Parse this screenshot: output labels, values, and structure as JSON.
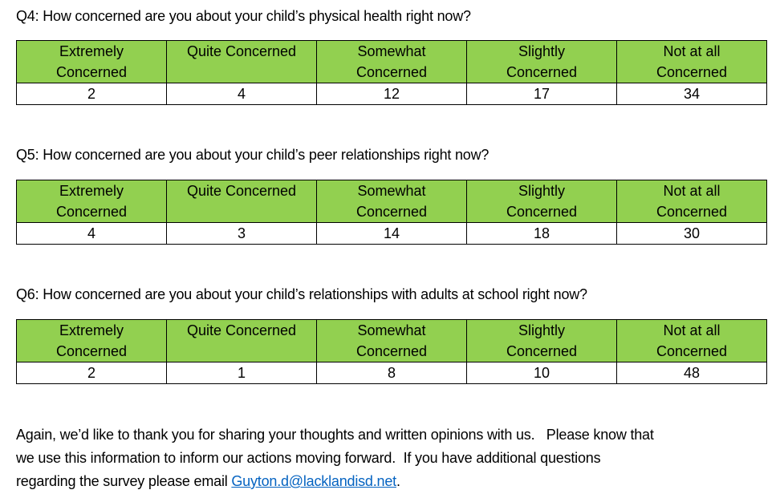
{
  "colors": {
    "header_green": "#92d050",
    "border_black": "#000000",
    "link_blue": "#0563c1",
    "text_black": "#000000",
    "page_background": "#ffffff"
  },
  "sections": [
    {
      "question": "Q4: How concerned are you about your child’s physical health right now?",
      "headers": [
        {
          "line1": "Extremely",
          "line2": "Concerned"
        },
        {
          "line1": "Quite Concerned",
          "line2": ""
        },
        {
          "line1": "Somewhat",
          "line2": "Concerned"
        },
        {
          "line1": "Slightly",
          "line2": "Concerned"
        },
        {
          "line1": "Not at all",
          "line2": "Concerned"
        }
      ],
      "values": [
        "2",
        "4",
        "12",
        "17",
        "34"
      ]
    },
    {
      "question": "Q5: How concerned are you about your child’s peer relationships right now?",
      "headers": [
        {
          "line1": "Extremely",
          "line2": "Concerned"
        },
        {
          "line1": "Quite Concerned",
          "line2": ""
        },
        {
          "line1": "Somewhat",
          "line2": "Concerned"
        },
        {
          "line1": "Slightly",
          "line2": "Concerned"
        },
        {
          "line1": "Not at all",
          "line2": "Concerned"
        }
      ],
      "values": [
        "4",
        "3",
        "14",
        "18",
        "30"
      ]
    },
    {
      "question": "Q6: How concerned are you about your child’s relationships with adults at school right now?",
      "headers": [
        {
          "line1": "Extremely",
          "line2": "Concerned"
        },
        {
          "line1": "Quite Concerned",
          "line2": ""
        },
        {
          "line1": "Somewhat",
          "line2": "Concerned"
        },
        {
          "line1": "Slightly",
          "line2": "Concerned"
        },
        {
          "line1": "Not at all",
          "line2": "Concerned"
        }
      ],
      "values": [
        "2",
        "1",
        "8",
        "10",
        "48"
      ]
    }
  ],
  "closing": {
    "line1": "Again, we’d like to thank you for sharing your thoughts and written opinions with us.   Please know that",
    "line2": "we use this information to inform our actions moving forward.  If you have additional questions",
    "line3_prefix": "regarding the survey please email ",
    "link_text": "Guyton.d@lacklandisd.net",
    "line3_suffix": "."
  }
}
